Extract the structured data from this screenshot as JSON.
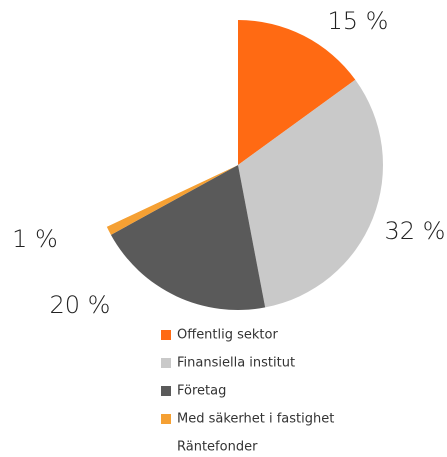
{
  "chart_data": {
    "type": "pie",
    "categories": [
      "Offentlig sektor",
      "Finansiella institut",
      "Företag",
      "Med säkerhet i fastighet",
      "Räntefonder"
    ],
    "values": [
      15,
      32,
      20,
      1,
      32
    ],
    "value_labels": [
      "15 %",
      "32 %",
      "20 %",
      "1 %",
      null
    ],
    "colors": [
      "#ff6a13",
      "#c9c9c9",
      "#5a5a5a",
      "#f5a033",
      "#ffffff"
    ],
    "legend": "bottom"
  }
}
